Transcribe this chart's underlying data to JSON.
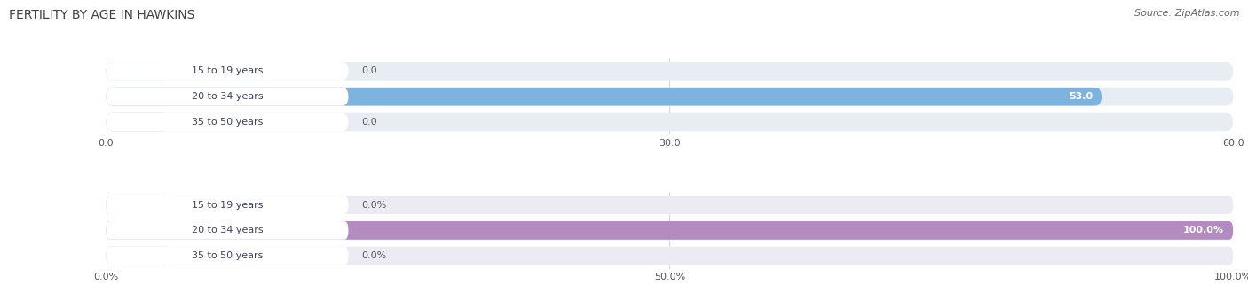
{
  "title": "FERTILITY BY AGE IN HAWKINS",
  "source": "Source: ZipAtlas.com",
  "top_chart": {
    "categories": [
      "15 to 19 years",
      "20 to 34 years",
      "35 to 50 years"
    ],
    "values": [
      0.0,
      53.0,
      0.0
    ],
    "xlim": [
      0,
      60.0
    ],
    "xticks": [
      0.0,
      30.0,
      60.0
    ],
    "xtick_labels": [
      "0.0",
      "30.0",
      "60.0"
    ],
    "bar_color": "#7EB3DF",
    "bar_color_dim": "#B8D4EE",
    "label_inside_color": "#ffffff",
    "label_outside_color": "#555555",
    "bar_height": 0.72,
    "bar_bg_color": "#E8EDF4",
    "white_label_bg": "#ffffff"
  },
  "bottom_chart": {
    "categories": [
      "15 to 19 years",
      "20 to 34 years",
      "35 to 50 years"
    ],
    "values": [
      0.0,
      100.0,
      0.0
    ],
    "xlim": [
      0,
      100.0
    ],
    "xticks": [
      0.0,
      50.0,
      100.0
    ],
    "xtick_labels": [
      "0.0%",
      "50.0%",
      "100.0%"
    ],
    "bar_color": "#B38BC0",
    "bar_color_dim": "#D4B8E0",
    "label_inside_color": "#ffffff",
    "label_outside_color": "#555555",
    "bar_height": 0.72,
    "bar_bg_color": "#ECEAF2",
    "white_label_bg": "#ffffff"
  },
  "background_color": "#ffffff",
  "grid_color": "#d8d8d8",
  "title_color": "#404040",
  "title_fontsize": 10,
  "source_fontsize": 8,
  "label_fontsize": 8,
  "tick_fontsize": 8,
  "cat_fontsize": 8,
  "cat_text_color": "#404060"
}
